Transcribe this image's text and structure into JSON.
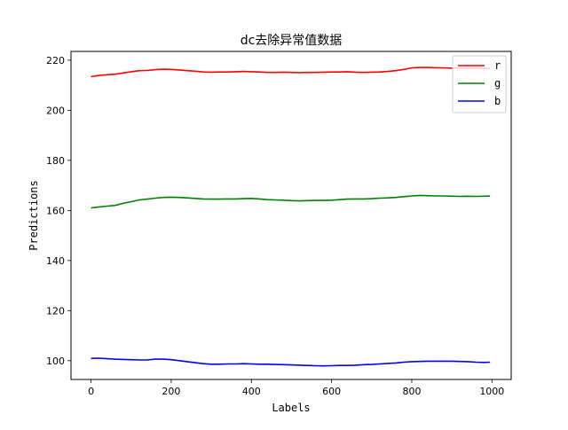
{
  "chart_data": {
    "type": "line",
    "title": "dc去除异常值数据",
    "xlabel": "Labels",
    "ylabel": "Predictions",
    "xlim": [
      -50,
      1048
    ],
    "ylim": [
      92.5,
      223.5
    ],
    "xticks": [
      0,
      200,
      400,
      600,
      800,
      1000
    ],
    "yticks": [
      100,
      120,
      140,
      160,
      180,
      200,
      220
    ],
    "legend_position": "top-right",
    "x": [
      0,
      20,
      40,
      60,
      80,
      100,
      120,
      140,
      160,
      180,
      200,
      220,
      240,
      260,
      280,
      300,
      320,
      340,
      360,
      380,
      400,
      420,
      440,
      460,
      480,
      500,
      520,
      540,
      560,
      580,
      600,
      620,
      640,
      660,
      680,
      700,
      720,
      740,
      760,
      780,
      800,
      820,
      840,
      860,
      880,
      900,
      920,
      940,
      960,
      980,
      995
    ],
    "series": [
      {
        "name": "r",
        "color": "#ff0000",
        "values": [
          213.4,
          213.9,
          214.2,
          214.4,
          214.9,
          215.4,
          215.8,
          215.9,
          216.2,
          216.4,
          216.3,
          216.1,
          215.8,
          215.6,
          215.3,
          215.2,
          215.3,
          215.3,
          215.4,
          215.5,
          215.4,
          215.3,
          215.1,
          215.1,
          215.2,
          215.1,
          215.0,
          215.1,
          215.1,
          215.2,
          215.3,
          215.3,
          215.4,
          215.2,
          215.1,
          215.2,
          215.3,
          215.5,
          215.8,
          216.3,
          216.9,
          217.1,
          217.1,
          217.0,
          216.9,
          216.8,
          216.9,
          216.8,
          216.9,
          216.7,
          216.8
        ]
      },
      {
        "name": "g",
        "color": "#008000",
        "values": [
          161.0,
          161.4,
          161.7,
          162.0,
          162.8,
          163.5,
          164.2,
          164.5,
          164.9,
          165.2,
          165.3,
          165.2,
          165.0,
          164.8,
          164.6,
          164.5,
          164.5,
          164.6,
          164.6,
          164.7,
          164.8,
          164.6,
          164.3,
          164.2,
          164.1,
          163.9,
          163.8,
          163.9,
          164.0,
          164.0,
          164.1,
          164.3,
          164.5,
          164.6,
          164.6,
          164.7,
          164.9,
          165.0,
          165.2,
          165.5,
          165.8,
          166.0,
          165.9,
          165.8,
          165.8,
          165.7,
          165.6,
          165.7,
          165.6,
          165.7,
          165.8
        ]
      },
      {
        "name": "b",
        "color": "#0000ff",
        "values": [
          100.9,
          101.0,
          100.8,
          100.6,
          100.5,
          100.4,
          100.3,
          100.3,
          100.6,
          100.6,
          100.4,
          100.0,
          99.6,
          99.2,
          98.8,
          98.6,
          98.6,
          98.7,
          98.7,
          98.8,
          98.7,
          98.6,
          98.6,
          98.5,
          98.4,
          98.3,
          98.2,
          98.1,
          98.0,
          97.9,
          98.0,
          98.1,
          98.1,
          98.2,
          98.4,
          98.5,
          98.7,
          98.9,
          99.1,
          99.4,
          99.6,
          99.7,
          99.8,
          99.8,
          99.8,
          99.8,
          99.7,
          99.6,
          99.4,
          99.3,
          99.4
        ]
      }
    ]
  }
}
